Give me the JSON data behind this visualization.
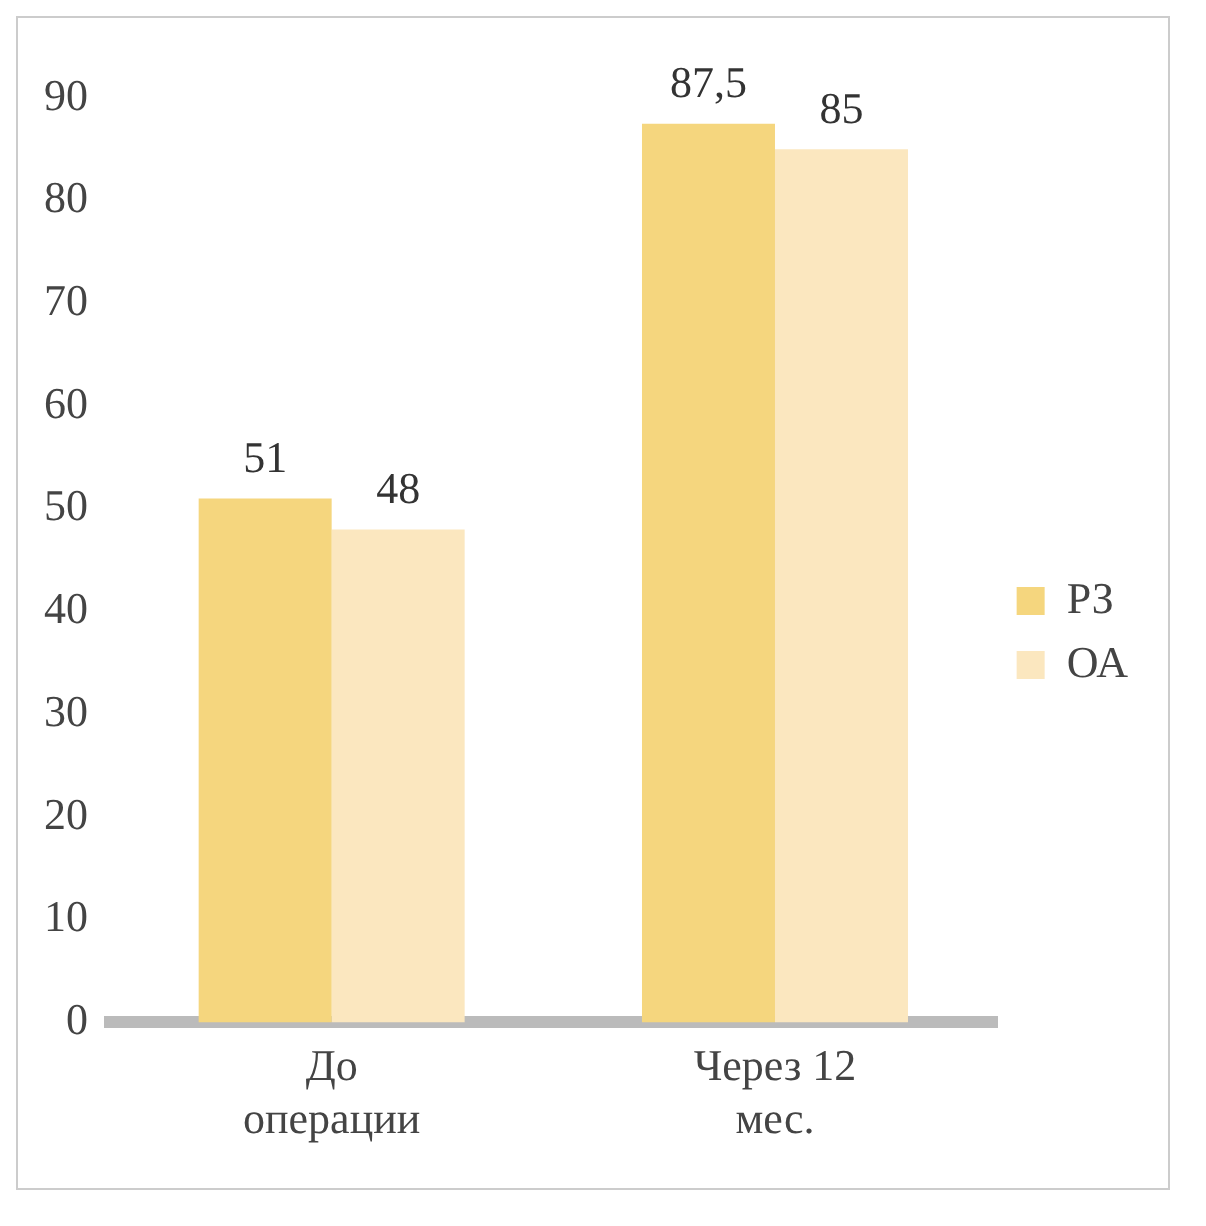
{
  "chart_data": {
    "type": "bar",
    "categories": [
      "До\nоперации",
      "Через 12\nмес."
    ],
    "series": [
      {
        "name": "РЗ",
        "color": "#f5d67e",
        "values": [
          51,
          87.5
        ],
        "value_labels": [
          "51",
          "87,5"
        ]
      },
      {
        "name": "ОА",
        "color": "#fbe7bf",
        "values": [
          48,
          85
        ],
        "value_labels": [
          "48",
          "85"
        ]
      }
    ],
    "ylim": [
      0,
      90
    ],
    "yticks": [
      0,
      10,
      20,
      30,
      40,
      50,
      60,
      70,
      80,
      90
    ],
    "grid": false,
    "legend": "right"
  }
}
